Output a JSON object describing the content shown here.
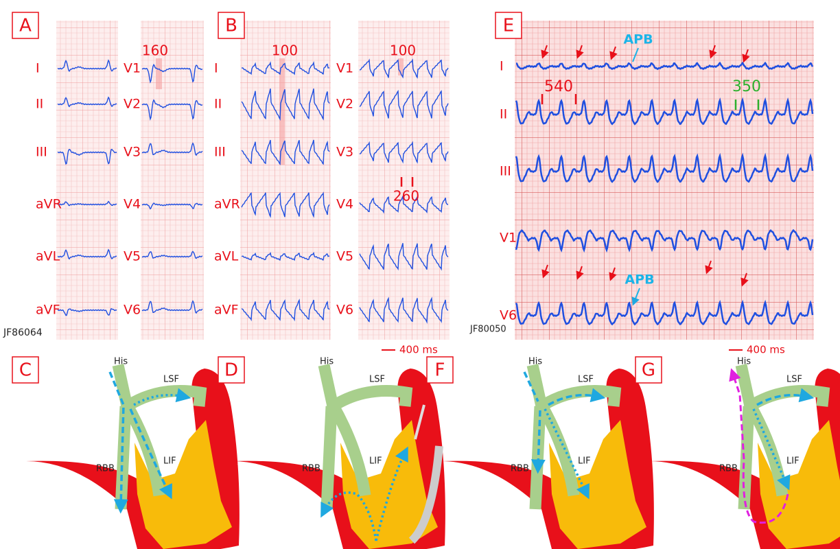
{
  "panel_a": {
    "letter": "A",
    "limb_leads": [
      "I",
      "II",
      "III",
      "aVR",
      "aVL",
      "aVF"
    ],
    "chest_leads": [
      "V1",
      "V2",
      "V3",
      "V4",
      "V5",
      "V6"
    ],
    "interval": "160",
    "tracing_id": "JF86064"
  },
  "panel_b": {
    "letter": "B",
    "limb_leads": [
      "I",
      "II",
      "III",
      "aVR",
      "aVL",
      "aVF"
    ],
    "chest_leads": [
      "V1",
      "V2",
      "V3",
      "V4",
      "V5",
      "V6"
    ],
    "intervals": [
      "100",
      "100",
      "260"
    ],
    "scale": "400 ms"
  },
  "panel_e": {
    "letter": "E",
    "leads": [
      "I",
      "II",
      "III",
      "V1",
      "V6"
    ],
    "markers": [
      "APB",
      "APB"
    ],
    "intervals": [
      "540",
      "350"
    ],
    "tracing_id": "JF80050",
    "scale": "400 ms"
  },
  "diagrams": [
    {
      "letter": "C",
      "his": "His",
      "lsf": "LSF",
      "rbb": "RBB",
      "lif": "LIF"
    },
    {
      "letter": "D",
      "his": "His",
      "lsf": "LSF",
      "rbb": "RBB",
      "lif": "LIF"
    },
    {
      "letter": "F",
      "his": "His",
      "lsf": "LSF",
      "rbb": "RBB",
      "lif": "LIF"
    },
    {
      "letter": "G",
      "his": "His",
      "lsf": "LSF",
      "rbb": "RBB",
      "lif": "LIF"
    }
  ]
}
